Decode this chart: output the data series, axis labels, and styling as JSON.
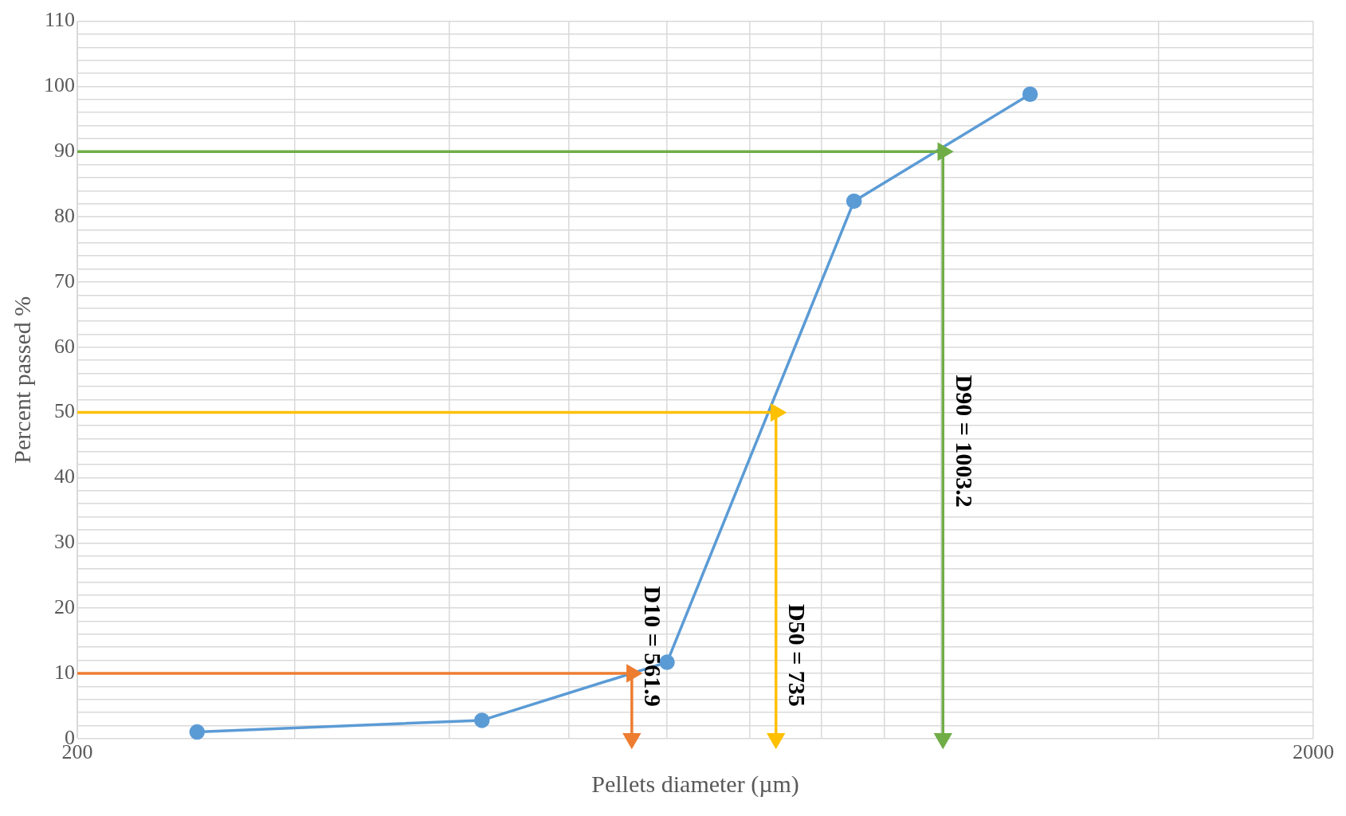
{
  "chart_data": {
    "type": "line",
    "xlabel": "Pellets diameter (µm)",
    "ylabel": "Percent passed %",
    "log": "x",
    "grid": true,
    "legend": false,
    "xlim": [
      200,
      2000
    ],
    "xticks": [
      200,
      {
        "value": 300,
        "label": null
      },
      {
        "value": 400,
        "label": null
      },
      {
        "value": 500,
        "label": null
      },
      {
        "value": 600,
        "label": null
      },
      {
        "value": 700,
        "label": null
      },
      {
        "value": 800,
        "label": null
      },
      {
        "value": 900,
        "label": null
      },
      {
        "value": 1000,
        "label": null
      },
      {
        "value": 1500,
        "label": null
      },
      2000
    ],
    "ylim": [
      0,
      110
    ],
    "yticks": [
      0,
      {
        "value": 2,
        "label": null
      },
      {
        "value": 4,
        "label": null
      },
      {
        "value": 6,
        "label": null
      },
      {
        "value": 8,
        "label": null
      },
      10,
      {
        "value": 12,
        "label": null
      },
      {
        "value": 14,
        "label": null
      },
      {
        "value": 16,
        "label": null
      },
      {
        "value": 18,
        "label": null
      },
      20,
      {
        "value": 22,
        "label": null
      },
      {
        "value": 24,
        "label": null
      },
      {
        "value": 26,
        "label": null
      },
      {
        "value": 28,
        "label": null
      },
      30,
      {
        "value": 32,
        "label": null
      },
      {
        "value": 34,
        "label": null
      },
      {
        "value": 36,
        "label": null
      },
      {
        "value": 38,
        "label": null
      },
      40,
      {
        "value": 42,
        "label": null
      },
      {
        "value": 44,
        "label": null
      },
      {
        "value": 46,
        "label": null
      },
      {
        "value": 48,
        "label": null
      },
      50,
      {
        "value": 52,
        "label": null
      },
      {
        "value": 54,
        "label": null
      },
      {
        "value": 56,
        "label": null
      },
      {
        "value": 58,
        "label": null
      },
      60,
      {
        "value": 62,
        "label": null
      },
      {
        "value": 64,
        "label": null
      },
      {
        "value": 66,
        "label": null
      },
      {
        "value": 68,
        "label": null
      },
      70,
      {
        "value": 72,
        "label": null
      },
      {
        "value": 74,
        "label": null
      },
      {
        "value": 76,
        "label": null
      },
      {
        "value": 78,
        "label": null
      },
      80,
      {
        "value": 82,
        "label": null
      },
      {
        "value": 84,
        "label": null
      },
      {
        "value": 86,
        "label": null
      },
      {
        "value": 88,
        "label": null
      },
      90,
      {
        "value": 92,
        "label": null
      },
      {
        "value": 94,
        "label": null
      },
      {
        "value": 96,
        "label": null
      },
      {
        "value": 98,
        "label": null
      },
      100,
      {
        "value": 102,
        "label": null
      },
      {
        "value": 104,
        "label": null
      },
      {
        "value": 106,
        "label": null
      },
      {
        "value": 108,
        "label": null
      },
      110
    ],
    "series": [
      {
        "color": "#ed7d31",
        "marker": "triangle",
        "x": [
          200,
          561.9,
          561.9
        ],
        "values": [
          10,
          10,
          0
        ]
      },
      {
        "color": "#ffc000",
        "marker": "triangle",
        "x": [
          200,
          735,
          735
        ],
        "values": [
          50,
          50,
          0
        ]
      },
      {
        "color": "#70ad47",
        "marker": "triangle",
        "x": [
          200,
          1003.2,
          1003.2
        ],
        "values": [
          90,
          90,
          0
        ]
      },
      {
        "color": "#5b9bd5",
        "marker": "circle",
        "x": [
          250,
          425,
          600,
          850,
          1180
        ],
        "values": [
          1,
          2.8,
          11.7,
          82.4,
          98.8
        ]
      }
    ],
    "annotations": [
      "D10 = 561.9",
      "D50 = 735",
      "D90 = 1003.2"
    ]
  }
}
